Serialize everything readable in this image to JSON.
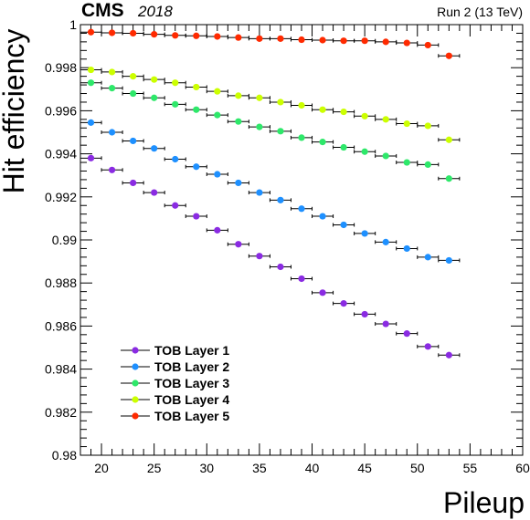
{
  "header": {
    "experiment": "CMS",
    "year": "2018",
    "run_label": "Run 2 (13 TeV)"
  },
  "chart_data": {
    "type": "scatter",
    "title": "",
    "xlabel": "Pileup",
    "ylabel": "Hit  efficiency",
    "xlim": [
      18,
      60
    ],
    "ylim": [
      0.98,
      1.0
    ],
    "x_ticks": [
      20,
      25,
      30,
      35,
      40,
      45,
      50,
      55,
      60
    ],
    "y_ticks": [
      0.98,
      0.982,
      0.984,
      0.986,
      0.988,
      0.99,
      0.992,
      0.994,
      0.996,
      0.998,
      1
    ],
    "y_tick_labels": [
      "0.98",
      "0.982",
      "0.984",
      "0.986",
      "0.988",
      "0.99",
      "0.992",
      "0.994",
      "0.996",
      "0.998",
      "1"
    ],
    "x_tick_labels": [
      "20",
      "25",
      "30",
      "35",
      "40",
      "45",
      "50",
      "55",
      "60"
    ],
    "x_bin_halfwidth": 1,
    "grid": false,
    "legend_position": "bottom-left",
    "x": [
      19,
      21,
      23,
      25,
      27,
      29,
      31,
      33,
      35,
      37,
      39,
      41,
      43,
      45,
      47,
      49,
      51,
      53
    ],
    "series": [
      {
        "name": "TOB Layer 1",
        "color": "#8a2be2",
        "values": [
          0.9938,
          0.99325,
          0.99265,
          0.9922,
          0.9916,
          0.9911,
          0.99045,
          0.9898,
          0.98925,
          0.98875,
          0.9882,
          0.98755,
          0.98705,
          0.98655,
          0.9861,
          0.98565,
          0.98505,
          0.98465
        ]
      },
      {
        "name": "TOB Layer 2",
        "color": "#1e90ff",
        "values": [
          0.99545,
          0.995,
          0.9946,
          0.99425,
          0.99375,
          0.9934,
          0.99305,
          0.99265,
          0.9922,
          0.99185,
          0.99145,
          0.9911,
          0.9907,
          0.9903,
          0.9899,
          0.9896,
          0.9892,
          0.98905
        ]
      },
      {
        "name": "TOB Layer 3",
        "color": "#2ee86a",
        "values": [
          0.9973,
          0.99705,
          0.9968,
          0.9966,
          0.9963,
          0.99605,
          0.9958,
          0.9955,
          0.99525,
          0.99505,
          0.99475,
          0.99455,
          0.9943,
          0.9941,
          0.9939,
          0.9936,
          0.9935,
          0.99285
        ]
      },
      {
        "name": "TOB Layer 4",
        "color": "#ccff00",
        "values": [
          0.9979,
          0.9978,
          0.9976,
          0.99745,
          0.9973,
          0.9971,
          0.9969,
          0.9967,
          0.9966,
          0.9964,
          0.99625,
          0.99605,
          0.99595,
          0.99575,
          0.9956,
          0.9954,
          0.9953,
          0.99465
        ]
      },
      {
        "name": "TOB Layer 5",
        "color": "#ff2a00",
        "values": [
          0.99965,
          0.99962,
          0.9996,
          0.99955,
          0.9995,
          0.99948,
          0.99945,
          0.9994,
          0.99935,
          0.99935,
          0.9993,
          0.99928,
          0.99925,
          0.99925,
          0.9992,
          0.99915,
          0.99905,
          0.99855
        ]
      }
    ]
  }
}
